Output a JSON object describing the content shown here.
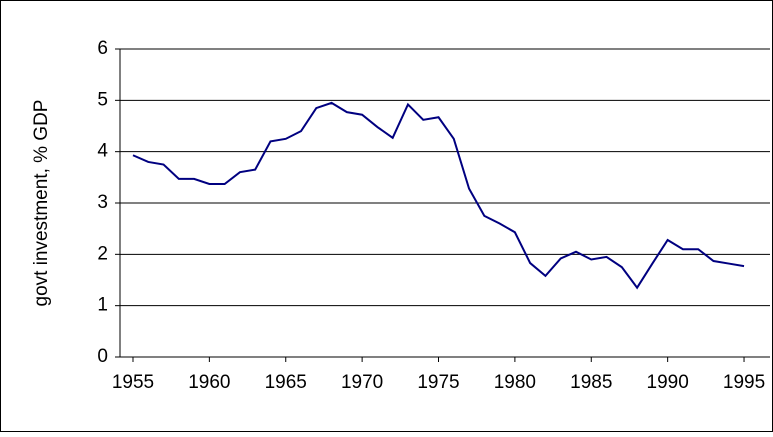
{
  "chart_data": {
    "type": "line",
    "y_label": "govt investment, % GDP",
    "x": [
      1955,
      1956,
      1957,
      1958,
      1959,
      1960,
      1961,
      1962,
      1963,
      1964,
      1965,
      1966,
      1967,
      1968,
      1969,
      1970,
      1971,
      1972,
      1973,
      1974,
      1975,
      1976,
      1977,
      1978,
      1979,
      1980,
      1981,
      1982,
      1983,
      1984,
      1985,
      1986,
      1987,
      1988,
      1989,
      1990,
      1991,
      1992,
      1993,
      1994,
      1995
    ],
    "series": [
      {
        "color": "#000080",
        "values": [
          3.93,
          3.8,
          3.75,
          3.47,
          3.47,
          3.37,
          3.37,
          3.6,
          3.65,
          4.2,
          4.25,
          4.4,
          4.85,
          4.95,
          4.77,
          4.72,
          4.48,
          4.27,
          4.92,
          4.62,
          4.67,
          4.25,
          3.28,
          2.75,
          2.6,
          2.43,
          1.83,
          1.58,
          1.92,
          2.05,
          1.9,
          1.95,
          1.75,
          1.35,
          1.82,
          2.28,
          2.1,
          2.1,
          1.87,
          1.82,
          1.77
        ]
      }
    ],
    "xlim": [
      1954.15,
      1996.7
    ],
    "xticks": [
      1955,
      1960,
      1965,
      1970,
      1975,
      1980,
      1985,
      1990,
      1995
    ],
    "ylim": [
      0,
      6
    ],
    "yticks": [
      0,
      1,
      2,
      3,
      4,
      5,
      6
    ],
    "grid": true
  }
}
